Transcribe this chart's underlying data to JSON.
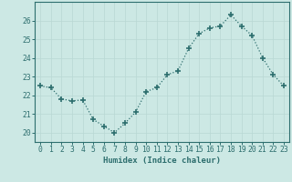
{
  "x": [
    0,
    1,
    2,
    3,
    4,
    5,
    6,
    7,
    8,
    9,
    10,
    11,
    12,
    13,
    14,
    15,
    16,
    17,
    18,
    19,
    20,
    21,
    22,
    23
  ],
  "y": [
    22.5,
    22.4,
    21.8,
    21.7,
    21.75,
    20.7,
    20.35,
    20.0,
    20.5,
    21.1,
    22.2,
    22.4,
    23.1,
    23.3,
    24.5,
    25.3,
    25.6,
    25.7,
    26.3,
    25.7,
    25.2,
    24.0,
    23.1,
    22.5
  ],
  "xlabel": "Humidex (Indice chaleur)",
  "ylim": [
    19.5,
    27.0
  ],
  "xlim": [
    -0.5,
    23.5
  ],
  "yticks": [
    20,
    21,
    22,
    23,
    24,
    25,
    26
  ],
  "ytick_labels": [
    "20",
    "21",
    "22",
    "23",
    "24",
    "25",
    "26"
  ],
  "xticks": [
    0,
    1,
    2,
    3,
    4,
    5,
    6,
    7,
    8,
    9,
    10,
    11,
    12,
    13,
    14,
    15,
    16,
    17,
    18,
    19,
    20,
    21,
    22,
    23
  ],
  "xtick_labels": [
    "0",
    "1",
    "2",
    "3",
    "4",
    "5",
    "6",
    "7",
    "8",
    "9",
    "10",
    "11",
    "12",
    "13",
    "14",
    "15",
    "16",
    "17",
    "18",
    "19",
    "20",
    "21",
    "22",
    "23"
  ],
  "line_color": "#2d6e6e",
  "bg_color": "#cce8e4",
  "grid_color": "#b8d8d4",
  "label_fontsize": 6.5,
  "tick_fontsize": 5.8
}
